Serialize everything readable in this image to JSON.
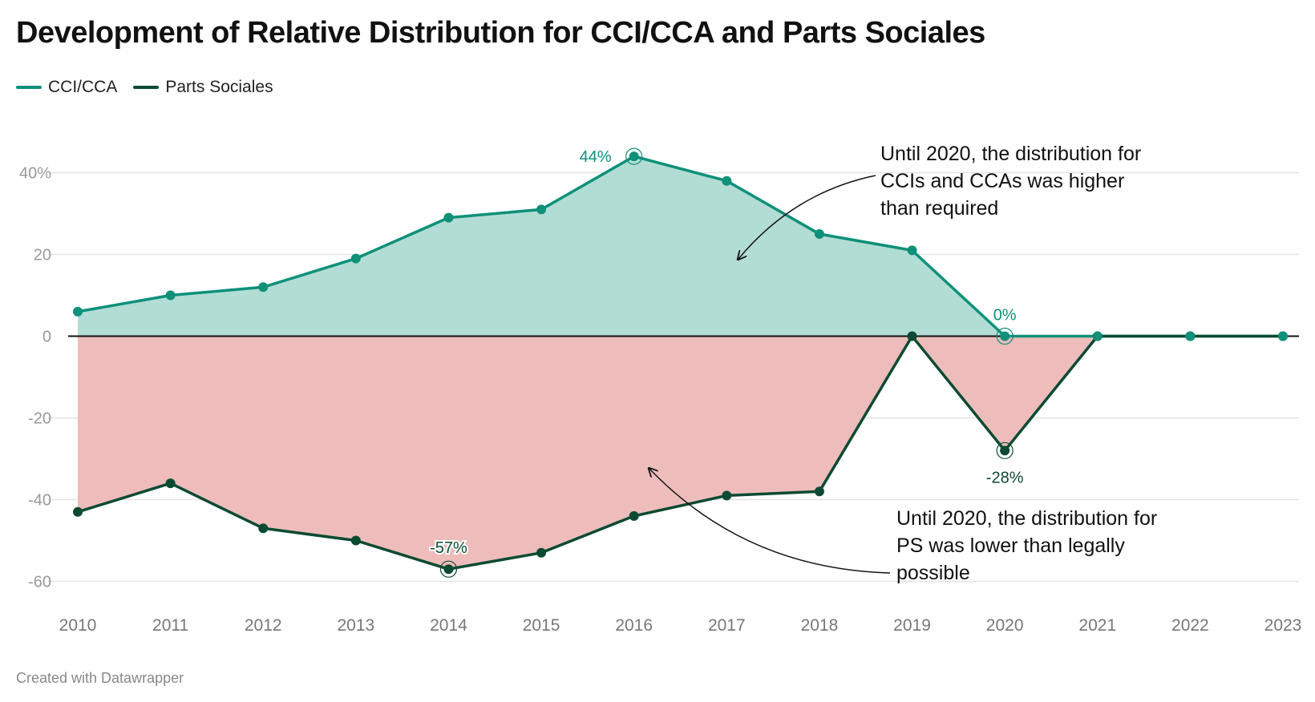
{
  "chart_data": {
    "type": "area",
    "title": "Development of Relative Distribution for CCI/CCA and Parts Sociales",
    "x": [
      2010,
      2011,
      2012,
      2013,
      2014,
      2015,
      2016,
      2017,
      2018,
      2019,
      2020,
      2021,
      2022,
      2023
    ],
    "x_tick_labels": [
      "2010",
      "2011",
      "2012",
      "2013",
      "2014",
      "2015",
      "2016",
      "2017",
      "2018",
      "2019",
      "2020",
      "2021",
      "2022",
      "2023"
    ],
    "y_ticks": [
      40,
      20,
      0,
      -20,
      -40,
      -60
    ],
    "y_tick_labels": [
      "40%",
      "20",
      "0",
      "-20",
      "-40",
      "-60"
    ],
    "ylim": [
      -68,
      48
    ],
    "grid": true,
    "legend_placement": "top-left",
    "series": [
      {
        "name": "CCI/CCA",
        "color": "#0e9079",
        "fill": "#b2ddd4",
        "values": [
          6,
          10,
          12,
          19,
          29,
          31,
          44,
          38,
          25,
          21,
          0,
          0,
          0,
          0
        ]
      },
      {
        "name": "Parts Sociales",
        "color": "#0b4a32",
        "fill": "#edbcbb",
        "values": [
          -43,
          -36,
          -47,
          -50,
          -57,
          -53,
          -44,
          -39,
          -38,
          0,
          -28,
          0,
          0,
          0
        ]
      }
    ],
    "data_labels": [
      {
        "series": 0,
        "x": 2016,
        "text": "44%",
        "position": "left"
      },
      {
        "series": 0,
        "x": 2020,
        "text": "0%",
        "position": "above"
      },
      {
        "series": 1,
        "x": 2014,
        "text": "-57%",
        "position": "above"
      },
      {
        "series": 1,
        "x": 2020,
        "text": "-28%",
        "position": "below"
      }
    ],
    "annotations": [
      {
        "lines": [
          "Until 2020, the distribution for",
          "CCIs and CCAs was higher",
          "than required"
        ]
      },
      {
        "lines": [
          "Until 2020, the distribution for",
          "PS was lower than legally",
          "possible"
        ]
      }
    ]
  },
  "footer": "Created with Datawrapper"
}
